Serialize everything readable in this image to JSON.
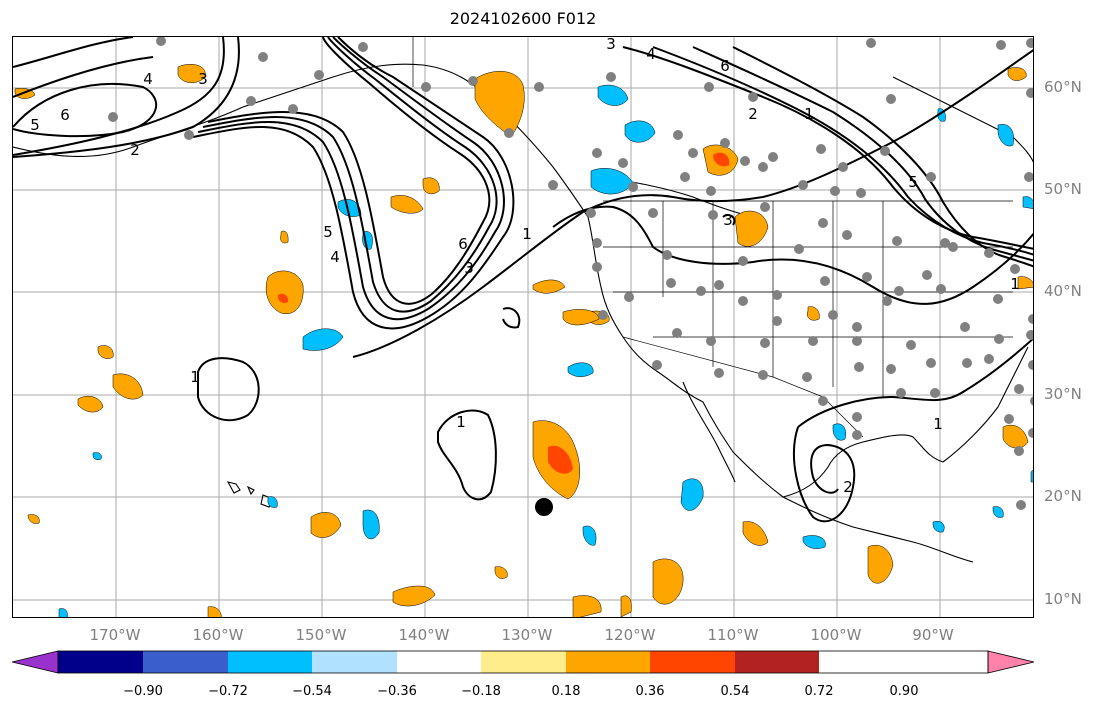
{
  "title": "2024102600 F012",
  "lon_labels": [
    "170°W",
    "160°W",
    "150°W",
    "140°W",
    "130°W",
    "120°W",
    "110°W",
    "100°W",
    "90°W"
  ],
  "lat_labels": [
    "60°N",
    "50°N",
    "40°N",
    "30°N",
    "20°N",
    "10°N"
  ],
  "colorbar": {
    "ticks": [
      "−0.90",
      "−0.72",
      "−0.54",
      "−0.36",
      "−0.18",
      "0.18",
      "0.36",
      "0.54",
      "0.72",
      "0.90"
    ],
    "colors": [
      "#9932cc",
      "#00008b",
      "#3a5fcd",
      "#00bfff",
      "#b0e2ff",
      "#ffffff",
      "#ffec8b",
      "#ffa500",
      "#ff4500",
      "#b22222",
      "#ff82ab"
    ]
  },
  "contour_labels": [
    "1",
    "2",
    "3",
    "4",
    "5",
    "6"
  ],
  "marker": "black-dot",
  "colors": {
    "positive_light": "#ffa500",
    "positive_strong": "#ff4500",
    "negative_light": "#00bfff",
    "station": "#808080",
    "grid": "#aaaaaa",
    "axis_label": "#808080"
  }
}
